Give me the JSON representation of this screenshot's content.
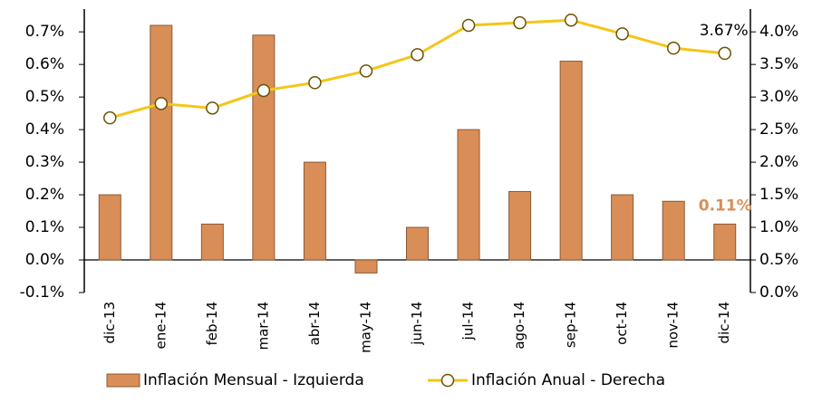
{
  "chart_data": {
    "type": "bar-line",
    "categories": [
      "dic-13",
      "ene-14",
      "feb-14",
      "mar-14",
      "abr-14",
      "may-14",
      "jun-14",
      "jul-14",
      "ago-14",
      "sep-14",
      "oct-14",
      "nov-14",
      "dic-14"
    ],
    "series": [
      {
        "name": "Inflación Mensual - Izquierda",
        "type": "bar",
        "color": "#d98e57",
        "axis": "y",
        "values": [
          0.2,
          0.72,
          0.11,
          0.69,
          0.3,
          -0.04,
          0.1,
          0.4,
          0.21,
          0.61,
          0.2,
          0.18,
          0.11
        ],
        "value_labels": [
          null,
          null,
          null,
          null,
          null,
          null,
          null,
          null,
          null,
          null,
          null,
          null,
          "0.11%"
        ]
      },
      {
        "name": "Inflación Anual - Derecha",
        "type": "line",
        "color": "#f5c518",
        "axis": "y2",
        "values": [
          2.68,
          2.9,
          2.83,
          3.1,
          3.22,
          3.4,
          3.65,
          4.1,
          4.14,
          4.18,
          3.97,
          3.75,
          3.67
        ],
        "value_labels": [
          null,
          null,
          null,
          null,
          null,
          null,
          null,
          null,
          null,
          null,
          null,
          null,
          "3.67%"
        ]
      }
    ],
    "ylim": [
      -0.1,
      0.77
    ],
    "yticks": [
      {
        "value": -0.1,
        "label": "-0.1%"
      },
      {
        "value": 0,
        "label": "0.0%"
      },
      {
        "value": 0.1,
        "label": "0.1%"
      },
      {
        "value": 0.2,
        "label": "0.2%"
      },
      {
        "value": 0.3,
        "label": "0.3%"
      },
      {
        "value": 0.4,
        "label": "0.4%"
      },
      {
        "value": 0.5,
        "label": "0.5%"
      },
      {
        "value": 0.6,
        "label": "0.6%"
      },
      {
        "value": 0.7,
        "label": "0.7%"
      }
    ],
    "y2lim": [
      0,
      4.35
    ],
    "y2ticks": [
      {
        "value": 0,
        "label": "0.0%"
      },
      {
        "value": 0.5,
        "label": "0.5%"
      },
      {
        "value": 1,
        "label": "1.0%"
      },
      {
        "value": 1.5,
        "label": "1.5%"
      },
      {
        "value": 2,
        "label": "2.0%"
      },
      {
        "value": 2.5,
        "label": "2.5%"
      },
      {
        "value": 3,
        "label": "3.0%"
      },
      {
        "value": 3.5,
        "label": "3.5%"
      },
      {
        "value": 4,
        "label": "4.0%"
      }
    ],
    "grid": false,
    "legend": "bottom"
  }
}
